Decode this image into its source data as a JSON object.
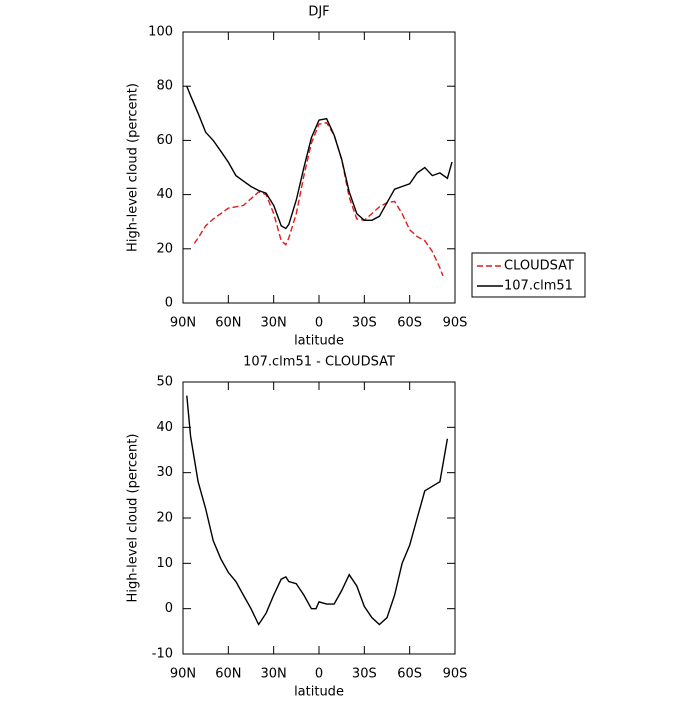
{
  "chart_data": [
    {
      "type": "line",
      "title": "DJF",
      "xlabel": "latitude",
      "ylabel": "High-level cloud (percent)",
      "xlim": [
        90,
        -90
      ],
      "xticks": [
        {
          "value": 90,
          "label": "90N"
        },
        {
          "value": 60,
          "label": "60N"
        },
        {
          "value": 30,
          "label": "30N"
        },
        0,
        {
          "value": -30,
          "label": "30S"
        },
        {
          "value": -60,
          "label": "60S"
        },
        {
          "value": -90,
          "label": "90S"
        }
      ],
      "ylim": [
        0,
        100
      ],
      "yticks": [
        0,
        20,
        40,
        60,
        80,
        100
      ],
      "legend": "right",
      "series": [
        {
          "name": "CLOUDSAT",
          "color": "#e41a1c",
          "dash": true,
          "x": [
            82.5,
            80,
            75,
            70,
            65,
            60,
            55,
            50,
            45,
            40,
            35,
            30,
            25,
            22,
            20,
            15,
            10,
            5,
            0,
            -5,
            -10,
            -15,
            -20,
            -25,
            -30,
            -35,
            -40,
            -45,
            -50,
            -55,
            -60,
            -65,
            -70,
            -75,
            -80,
            -82
          ],
          "values": [
            22,
            24,
            28.5,
            31,
            33,
            35,
            35.5,
            36,
            38.5,
            41,
            40,
            33,
            23,
            21.5,
            24,
            33,
            47,
            59,
            66,
            66.5,
            62,
            53,
            39,
            31,
            30.5,
            33,
            35.5,
            37,
            37.5,
            33,
            27,
            24.5,
            23,
            19,
            13,
            10
          ]
        },
        {
          "name": "107.clm51",
          "color": "#000000",
          "dash": false,
          "x": [
            87.5,
            85,
            80,
            75,
            70,
            65,
            60,
            55,
            50,
            45,
            40,
            35,
            30,
            25,
            22,
            20,
            15,
            10,
            5,
            0,
            -5,
            -10,
            -15,
            -20,
            -25,
            -30,
            -35,
            -40,
            -45,
            -50,
            -55,
            -60,
            -65,
            -70,
            -75,
            -80,
            -85,
            -88
          ],
          "values": [
            80,
            76.5,
            70,
            63,
            60,
            56,
            52,
            47,
            45,
            43,
            41.5,
            40.5,
            36,
            28.5,
            27.5,
            29,
            38,
            50,
            61,
            67.5,
            68,
            62,
            53,
            41,
            33,
            30.5,
            30.5,
            32,
            37,
            42,
            43,
            44,
            48,
            50,
            47,
            48,
            46,
            52
          ]
        }
      ]
    },
    {
      "type": "line",
      "title": "107.clm51 - CLOUDSAT",
      "xlabel": "latitude",
      "ylabel": "High-level cloud (percent)",
      "xlim": [
        90,
        -90
      ],
      "xticks": [
        {
          "value": 90,
          "label": "90N"
        },
        {
          "value": 60,
          "label": "60N"
        },
        {
          "value": 30,
          "label": "30N"
        },
        0,
        {
          "value": -30,
          "label": "30S"
        },
        {
          "value": -60,
          "label": "60S"
        },
        {
          "value": -90,
          "label": "90S"
        }
      ],
      "ylim": [
        -10,
        50
      ],
      "yticks": [
        -10,
        0,
        10,
        20,
        30,
        40,
        50
      ],
      "series": [
        {
          "color": "#000000",
          "dash": false,
          "x": [
            87.5,
            85,
            80,
            75,
            70,
            65,
            60,
            55,
            50,
            45,
            40,
            35,
            30,
            25,
            22,
            20,
            15,
            10,
            5,
            2,
            0,
            -5,
            -10,
            -15,
            -20,
            -25,
            -30,
            -35,
            -40,
            -45,
            -50,
            -55,
            -60,
            -65,
            -70,
            -75,
            -80,
            -85
          ],
          "values": [
            47,
            38,
            28,
            22,
            15,
            11,
            8,
            6,
            3,
            0,
            -3.5,
            -1,
            3,
            6.5,
            7,
            6,
            5.5,
            3,
            0,
            0,
            1.5,
            1,
            1,
            4,
            7.5,
            5,
            0.5,
            -2,
            -3.5,
            -2,
            3,
            10,
            14,
            20,
            26,
            27,
            28,
            37.5
          ]
        }
      ]
    }
  ]
}
